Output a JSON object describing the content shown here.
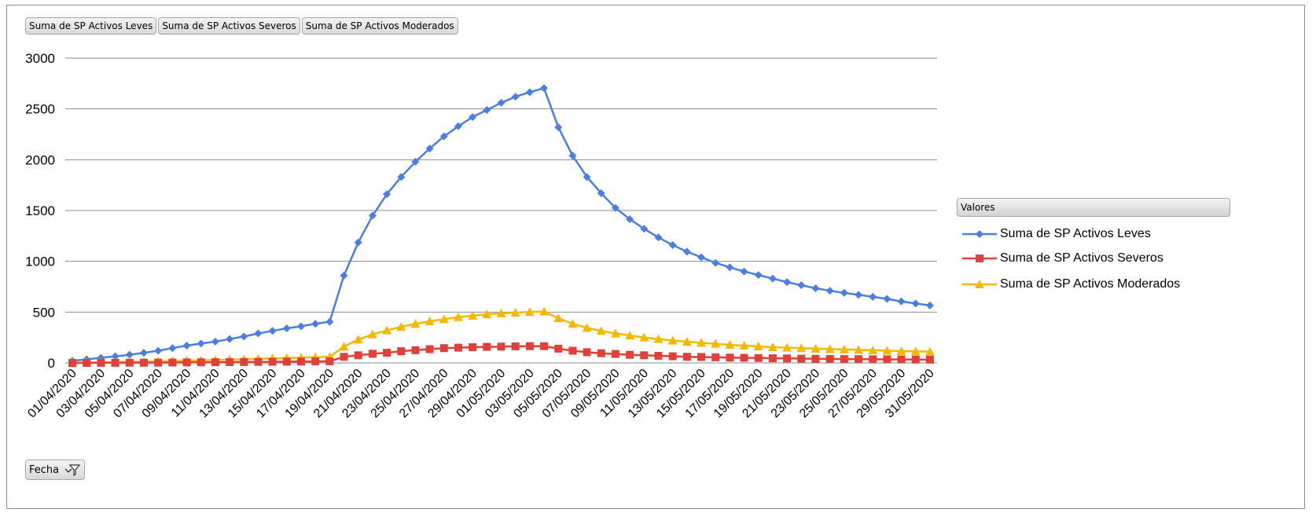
{
  "field_buttons": [
    "Suma de SP Activos Leves",
    "Suma de SP Activos Severos",
    "Suma de SP Activos Moderados"
  ],
  "legend": {
    "title": "Valores",
    "items": [
      "Suma de SP Activos Leves",
      "Suma de SP Activos Severos",
      "Suma de SP Activos Moderados"
    ]
  },
  "filter": {
    "label": "Fecha",
    "icon": "filter-icon"
  },
  "colors": {
    "leves": "#4a7fe0",
    "severos": "#e0403a",
    "moderados": "#f5b800",
    "grid": "#8c8c8c"
  },
  "chart_data": {
    "type": "line",
    "x": [
      "01/04/2020",
      "02/04/2020",
      "03/04/2020",
      "04/04/2020",
      "05/04/2020",
      "06/04/2020",
      "07/04/2020",
      "08/04/2020",
      "09/04/2020",
      "10/04/2020",
      "11/04/2020",
      "12/04/2020",
      "13/04/2020",
      "14/04/2020",
      "15/04/2020",
      "16/04/2020",
      "17/04/2020",
      "18/04/2020",
      "19/04/2020",
      "20/04/2020",
      "21/04/2020",
      "22/04/2020",
      "23/04/2020",
      "24/04/2020",
      "25/04/2020",
      "26/04/2020",
      "27/04/2020",
      "28/04/2020",
      "29/04/2020",
      "30/04/2020",
      "01/05/2020",
      "02/05/2020",
      "03/05/2020",
      "04/05/2020",
      "05/05/2020",
      "06/05/2020",
      "07/05/2020",
      "08/05/2020",
      "09/05/2020",
      "10/05/2020",
      "11/05/2020",
      "12/05/2020",
      "13/05/2020",
      "14/05/2020",
      "15/05/2020",
      "16/05/2020",
      "17/05/2020",
      "18/05/2020",
      "19/05/2020",
      "20/05/2020",
      "21/05/2020",
      "22/05/2020",
      "23/05/2020",
      "24/05/2020",
      "25/05/2020",
      "26/05/2020",
      "27/05/2020",
      "28/05/2020",
      "29/05/2020",
      "30/05/2020",
      "31/05/2020"
    ],
    "tick_labels": [
      "01/04/2020",
      "03/04/2020",
      "05/04/2020",
      "07/04/2020",
      "09/04/2020",
      "11/04/2020",
      "13/04/2020",
      "15/04/2020",
      "17/04/2020",
      "19/04/2020",
      "21/04/2020",
      "23/04/2020",
      "25/04/2020",
      "27/04/2020",
      "29/04/2020",
      "01/05/2020",
      "03/05/2020",
      "05/05/2020",
      "07/05/2020",
      "09/05/2020",
      "11/05/2020",
      "13/05/2020",
      "15/05/2020",
      "17/05/2020",
      "19/05/2020",
      "21/05/2020",
      "23/05/2020",
      "25/05/2020",
      "27/05/2020",
      "29/05/2020",
      "31/05/2020"
    ],
    "series": [
      {
        "name": "Suma de SP Activos Leves",
        "marker": "diamond",
        "values": [
          20,
          35,
          50,
          65,
          80,
          100,
          120,
          145,
          170,
          190,
          210,
          235,
          260,
          290,
          315,
          340,
          360,
          385,
          405,
          860,
          1185,
          1450,
          1660,
          1830,
          1980,
          2110,
          2230,
          2330,
          2420,
          2490,
          2560,
          2620,
          2665,
          2705,
          2320,
          2040,
          1830,
          1670,
          1525,
          1415,
          1320,
          1235,
          1160,
          1095,
          1040,
          985,
          940,
          900,
          865,
          830,
          795,
          765,
          735,
          710,
          690,
          670,
          650,
          630,
          605,
          585,
          565
        ]
      },
      {
        "name": "Suma de SP Activos Severos",
        "marker": "square",
        "values": [
          0,
          0,
          1,
          1,
          2,
          2,
          3,
          4,
          5,
          6,
          7,
          8,
          9,
          10,
          11,
          12,
          13,
          15,
          16,
          60,
          75,
          90,
          100,
          115,
          125,
          135,
          145,
          150,
          155,
          158,
          160,
          163,
          165,
          165,
          140,
          120,
          105,
          95,
          88,
          80,
          75,
          70,
          65,
          60,
          58,
          55,
          52,
          50,
          48,
          46,
          44,
          42,
          40,
          39,
          38,
          37,
          36,
          35,
          34,
          33,
          32
        ]
      },
      {
        "name": "Suma de SP Activos Moderados",
        "marker": "triangle",
        "values": [
          2,
          4,
          6,
          8,
          10,
          12,
          15,
          18,
          22,
          25,
          28,
          32,
          36,
          40,
          44,
          48,
          52,
          56,
          60,
          160,
          230,
          280,
          320,
          355,
          385,
          410,
          430,
          450,
          465,
          478,
          488,
          495,
          502,
          505,
          440,
          385,
          345,
          315,
          290,
          270,
          250,
          235,
          220,
          208,
          198,
          188,
          178,
          170,
          162,
          155,
          150,
          145,
          140,
          136,
          132,
          128,
          124,
          120,
          116,
          113,
          110
        ]
      }
    ],
    "ylim": [
      0,
      3000
    ],
    "yticks": [
      0,
      500,
      1000,
      1500,
      2000,
      2500,
      3000
    ],
    "grid": true,
    "legend_position": "right"
  }
}
